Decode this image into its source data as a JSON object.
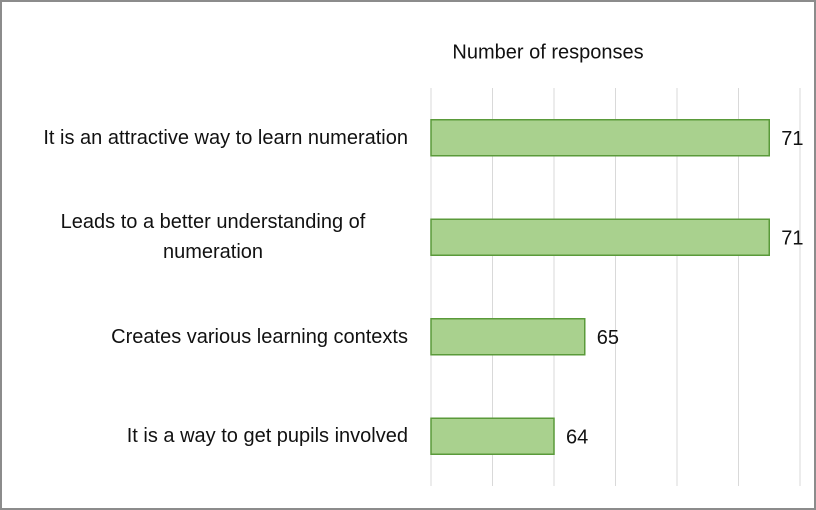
{
  "chart_data": {
    "type": "bar",
    "orientation": "horizontal",
    "title": "Number of responses",
    "categories": [
      "It is an attractive way to learn numeration",
      "Leads to a better understanding of numeration",
      "Creates various learning contexts",
      "It is a way to get pupils involved"
    ],
    "values": [
      71,
      71,
      65,
      64
    ],
    "color": "#a9d18e",
    "edge_color": "#5a9a3a",
    "xlim": [
      60,
      72
    ],
    "xticks": [
      60,
      62,
      64,
      66,
      68,
      70,
      72
    ],
    "grid": true
  }
}
